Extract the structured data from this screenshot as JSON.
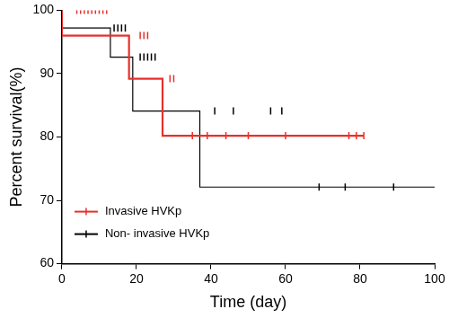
{
  "chart_data": {
    "type": "line",
    "x_label": "Time (day)",
    "y_label": "Percent survival(%)",
    "xlim": [
      0,
      100
    ],
    "xticks": [
      0,
      20,
      40,
      60,
      80,
      100
    ],
    "ylim": [
      60,
      100
    ],
    "yticks": [
      60,
      70,
      80,
      90,
      100
    ],
    "grid": false,
    "legend": "lower left",
    "line_style": "step",
    "marker": "|",
    "series": [
      {
        "name": "Invasive HVKp",
        "color": "#e8302c",
        "x": [
          0,
          18,
          27,
          34,
          81
        ],
        "values": [
          100,
          96,
          89.2,
          80.2,
          80.2
        ],
        "censor_x": [
          4,
          5,
          6,
          7,
          8,
          9,
          10,
          11,
          12,
          21,
          22,
          23,
          29,
          30,
          35,
          39,
          44,
          50,
          60,
          77,
          79,
          81
        ],
        "censor_values": [
          100,
          100,
          100,
          100,
          100,
          100,
          100,
          100,
          100,
          96,
          96,
          96,
          89.2,
          89.2,
          80.2,
          80.2,
          80.2,
          80.2,
          80.2,
          80.2,
          80.2,
          80.2
        ]
      },
      {
        "name": "Non- invasive HVKp",
        "color": "#000000",
        "x": [
          0,
          13,
          19,
          37,
          62,
          100
        ],
        "values": [
          100,
          97.2,
          92.6,
          84.1,
          72.1,
          72.1
        ],
        "censor_x": [
          14,
          15,
          16,
          17,
          21,
          22,
          23,
          24,
          25,
          41,
          46,
          56,
          59,
          69,
          76,
          89
        ],
        "censor_values": [
          97.2,
          97.2,
          97.2,
          97.2,
          92.6,
          92.6,
          92.6,
          92.6,
          92.6,
          84.1,
          84.1,
          84.1,
          84.1,
          72.1,
          72.1,
          72.1
        ]
      }
    ]
  }
}
